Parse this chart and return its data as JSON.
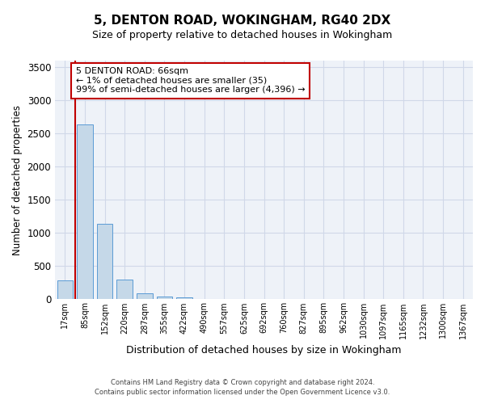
{
  "title": "5, DENTON ROAD, WOKINGHAM, RG40 2DX",
  "subtitle": "Size of property relative to detached houses in Wokingham",
  "xlabel": "Distribution of detached houses by size in Wokingham",
  "ylabel": "Number of detached properties",
  "categories": [
    "17sqm",
    "85sqm",
    "152sqm",
    "220sqm",
    "287sqm",
    "355sqm",
    "422sqm",
    "490sqm",
    "557sqm",
    "625sqm",
    "692sqm",
    "760sqm",
    "827sqm",
    "895sqm",
    "962sqm",
    "1030sqm",
    "1097sqm",
    "1165sqm",
    "1232sqm",
    "1300sqm",
    "1367sqm"
  ],
  "values": [
    290,
    2640,
    1140,
    295,
    90,
    45,
    30,
    0,
    0,
    0,
    0,
    0,
    0,
    0,
    0,
    0,
    0,
    0,
    0,
    0,
    0
  ],
  "bar_color": "#c5d8e8",
  "bar_edge_color": "#5b9bd5",
  "highlight_color": "#c00000",
  "annotation_text": "5 DENTON ROAD: 66sqm\n← 1% of detached houses are smaller (35)\n99% of semi-detached houses are larger (4,396) →",
  "annotation_box_color": "#ffffff",
  "annotation_box_edge_color": "#c00000",
  "ylim": [
    0,
    3600
  ],
  "yticks": [
    0,
    500,
    1000,
    1500,
    2000,
    2500,
    3000,
    3500
  ],
  "grid_color": "#d0d8e8",
  "bg_color": "#eef2f8",
  "footer_line1": "Contains HM Land Registry data © Crown copyright and database right 2024.",
  "footer_line2": "Contains public sector information licensed under the Open Government Licence v3.0."
}
